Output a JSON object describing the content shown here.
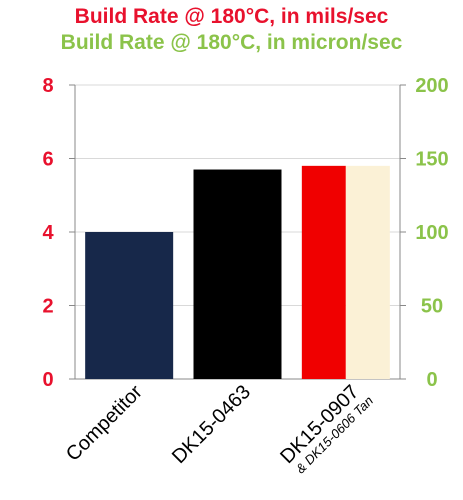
{
  "chart_data": {
    "type": "bar",
    "title": "Build Rate @ 180°C, in mils/sec",
    "subtitle": "Build Rate @ 180°C, in micron/sec",
    "categories": [
      "Competitor",
      "DK15-0463",
      "DK15-0907"
    ],
    "category_sublabels": [
      "",
      "",
      "& DK15-0606 Tan"
    ],
    "series": [
      {
        "name": "",
        "values": [
          4.0,
          5.7,
          5.8
        ],
        "colors": [
          "#17284a",
          "#000000",
          "#f00000"
        ]
      },
      {
        "name": "",
        "values": [
          null,
          null,
          5.8
        ],
        "colors": [
          null,
          null,
          "#fbf1d6"
        ]
      }
    ],
    "ylim": [
      0,
      8
    ],
    "yticks": [
      0,
      2,
      4,
      6,
      8
    ],
    "y2lim": [
      0,
      200
    ],
    "y2ticks": [
      0,
      50,
      100,
      150,
      200
    ],
    "colors": {
      "title": "#e8112d",
      "subtitle": "#8bc34a",
      "left_axis": "#e8112d",
      "right_axis": "#8bc34a",
      "grid": "#d9d9d9"
    },
    "grid": true,
    "legend": "none"
  }
}
